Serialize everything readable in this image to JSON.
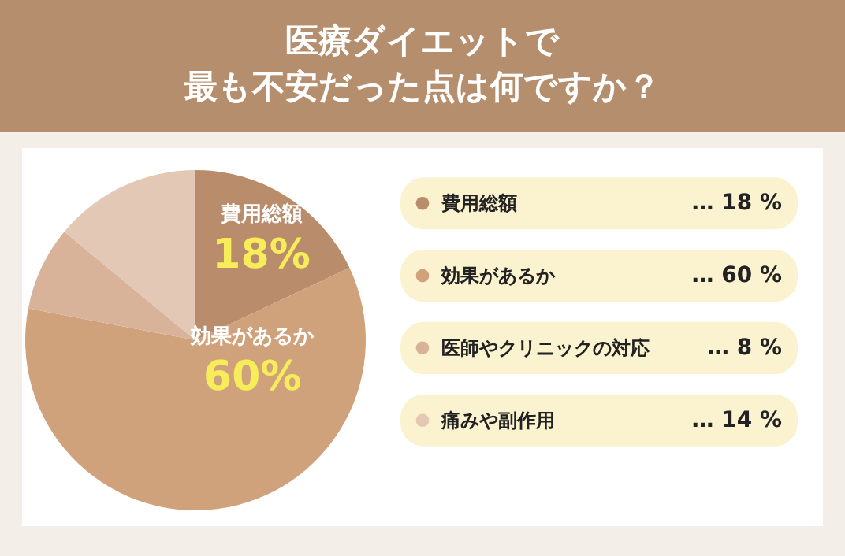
{
  "chart_data": {
    "type": "pie",
    "title": "医療ダイエットで",
    "subtitle": "最も不安だった点は何ですか？",
    "categories": [
      "費用総額",
      "効果があるか",
      "医師やクリニックの対応",
      "痛みや副作用"
    ],
    "values": [
      18,
      60,
      8,
      14
    ],
    "colors": [
      "#b98c6b",
      "#d0a27c",
      "#d8b39a",
      "#e3c8b5"
    ],
    "value_labels": [
      "… 18 %",
      "… 60 %",
      "… 8 %",
      "… 14 %"
    ],
    "annotations": [
      {
        "text": "18%",
        "x": "費用総額"
      },
      {
        "text": "60%",
        "x": "効果があるか"
      }
    ],
    "legend": "right"
  }
}
